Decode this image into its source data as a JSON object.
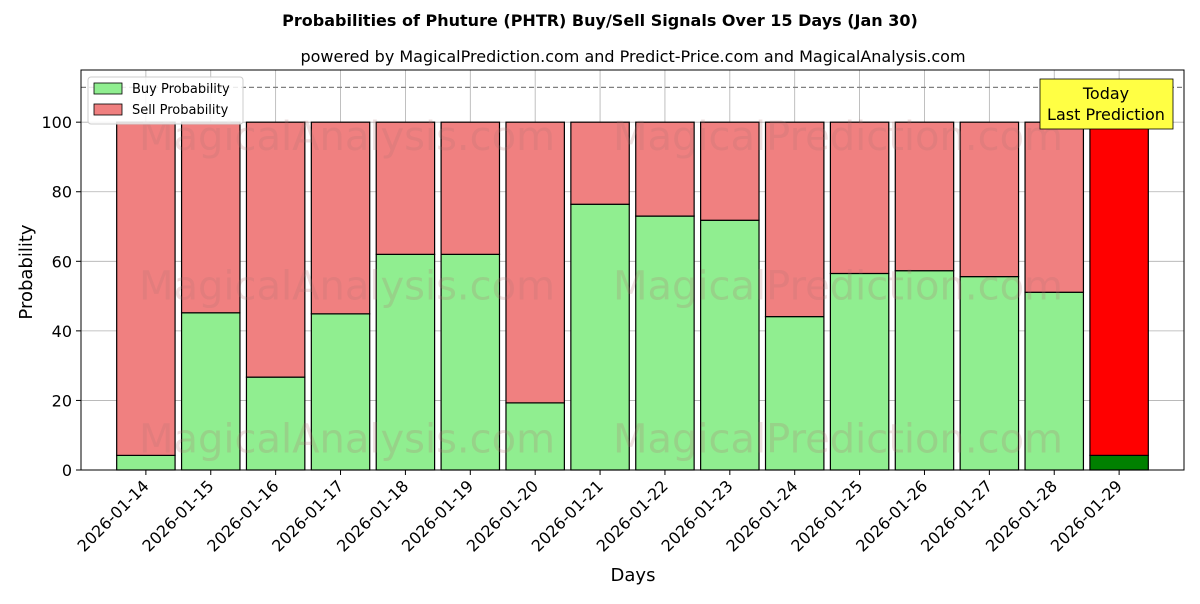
{
  "chart_data": {
    "type": "bar",
    "title": "Probabilities of Phuture (PHTR) Buy/Sell Signals Over 15 Days (Jan 30)",
    "subtitle": "powered by MagicalPrediction.com and Predict-Price.com and MagicalAnalysis.com",
    "xlabel": "Days",
    "ylabel": "Probability",
    "ylim": [
      0,
      115
    ],
    "yticks": [
      0,
      20,
      40,
      60,
      80,
      100
    ],
    "grid": true,
    "legend_position": "top-left",
    "reference_line": 110,
    "categories": [
      "2026-01-14",
      "2026-01-15",
      "2026-01-16",
      "2026-01-17",
      "2026-01-18",
      "2026-01-19",
      "2026-01-20",
      "2026-01-21",
      "2026-01-22",
      "2026-01-23",
      "2026-01-24",
      "2026-01-25",
      "2026-01-26",
      "2026-01-27",
      "2026-01-28",
      "2026-01-29"
    ],
    "series": [
      {
        "name": "Buy Probability",
        "values": [
          4.2,
          45.2,
          26.7,
          44.9,
          62.0,
          62.0,
          19.3,
          76.4,
          73.0,
          71.8,
          44.1,
          56.5,
          57.3,
          55.6,
          51.1,
          4.2
        ]
      },
      {
        "name": "Sell Probability",
        "values": [
          95.8,
          54.8,
          73.3,
          55.1,
          38.0,
          38.0,
          80.7,
          23.6,
          27.0,
          28.2,
          55.9,
          43.5,
          42.7,
          44.4,
          48.9,
          95.8
        ]
      }
    ],
    "colors": {
      "buy": "#90ee90",
      "sell": "#f08080",
      "today_buy": "#008000",
      "today_sell": "#ff0000",
      "annotation_bg": "#ffff44"
    },
    "annotation": {
      "line1": "Today",
      "line2": "Last Prediction"
    },
    "watermarks": [
      "MagicalAnalysis.com",
      "MagicalPrediction.com"
    ]
  }
}
